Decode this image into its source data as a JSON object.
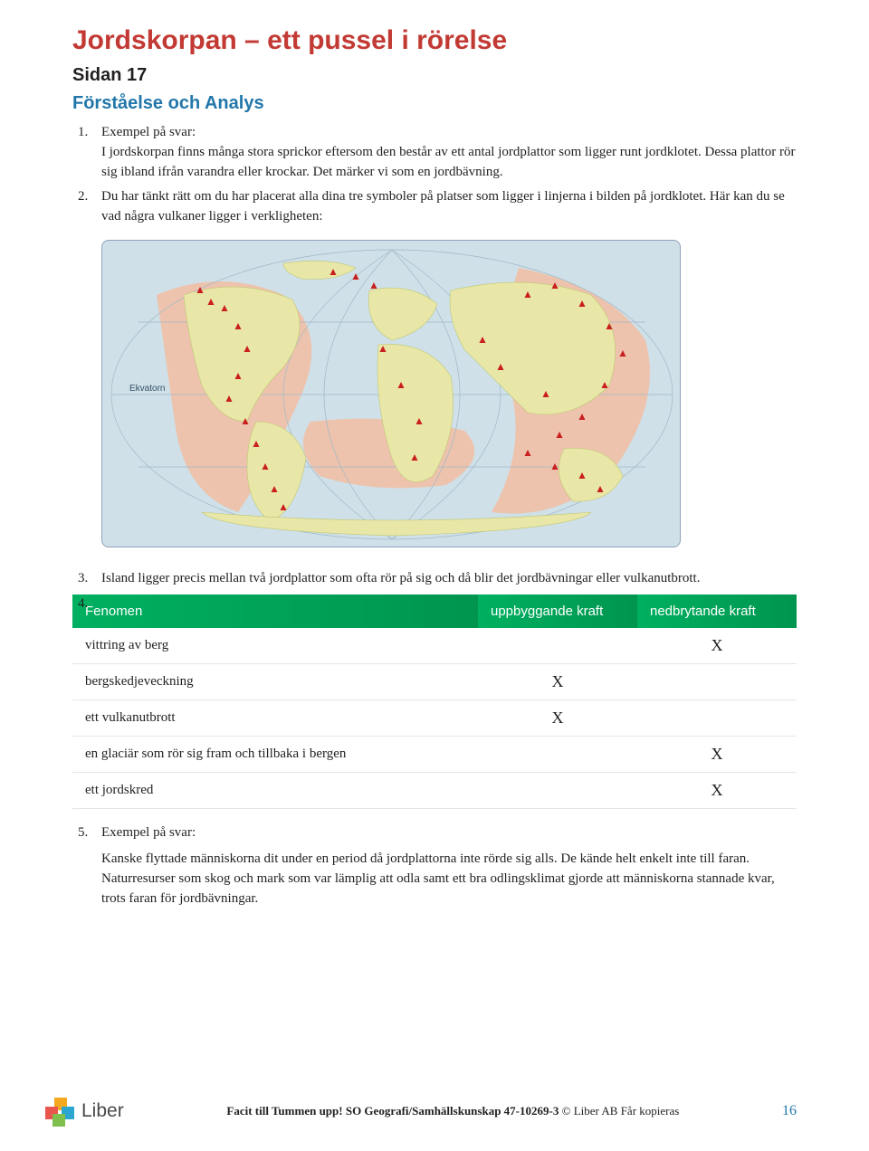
{
  "colors": {
    "title": "#c23a33",
    "section": "#2277aa",
    "table_header_bg_left": "#00b060",
    "table_header_bg_right": "#00954f",
    "footer_accent": "#2277aa"
  },
  "title": "Jordskorpan – ett pussel i rörelse",
  "subtitle": "Sidan 17",
  "section": "Förståelse och Analys",
  "items": {
    "a1_num": "1.",
    "a1_lead": "Exempel på svar:",
    "a1_body": "I jordskorpan finns många stora sprickor eftersom den består av ett antal jordplattor som ligger runt jordklotet. Dessa plattor rör sig ibland ifrån varandra eller krockar. Det märker vi som en jordbävning.",
    "a2_num": "2.",
    "a2_body": "Du har tänkt rätt om du har placerat alla dina tre symboler på platser som ligger i linjerna i bilden på jordklotet. Här kan du se vad några vulkaner ligger i verkligheten:",
    "a3_num": "3.",
    "a3_body": "Island ligger precis mellan två jordplattor som ofta rör på sig och då blir det jordbävningar eller vulkanutbrott.",
    "a4_num": "4.",
    "a5_num": "5.",
    "a5_lead": "Exempel på svar:",
    "a5_body": "Kanske flyttade människorna dit under en period då jordplattorna inte rörde sig alls. De kände helt enkelt inte till faran. Naturresurser som skog och mark som var lämplig att odla samt ett bra odlingsklimat gjorde att människorna stannade kvar, trots faran för jordbävningar."
  },
  "map": {
    "equator_label": "Ekvatorn",
    "ocean": "#cfe0e8",
    "land": "#e9e7a8",
    "belt": "#f0c0a6",
    "line": "#9fb9c8",
    "volcano": "#c91f1f"
  },
  "table": {
    "header": [
      "Fenomen",
      "uppbyggande kraft",
      "nedbrytande kraft"
    ],
    "rows": [
      {
        "label": "vittring av berg",
        "up": "",
        "down": "X"
      },
      {
        "label": "bergskedjeveckning",
        "up": "X",
        "down": ""
      },
      {
        "label": "ett vulkanutbrott",
        "up": "X",
        "down": ""
      },
      {
        "label": "en glaciär som rör sig fram och tillbaka i bergen",
        "up": "",
        "down": "X"
      },
      {
        "label": "ett jordskred",
        "up": "",
        "down": "X"
      }
    ]
  },
  "footer": {
    "logo_text": "Liber",
    "line_bold": "Facit till Tummen upp! SO Geografi/Samhällskunskap 47-10269-3",
    "line_rest": " © Liber AB  Får kopieras",
    "page_num": "16",
    "logo_colors": {
      "a": "#f3a81e",
      "b": "#e8564e",
      "c": "#7fbf4e",
      "d": "#2ba6d1"
    }
  }
}
